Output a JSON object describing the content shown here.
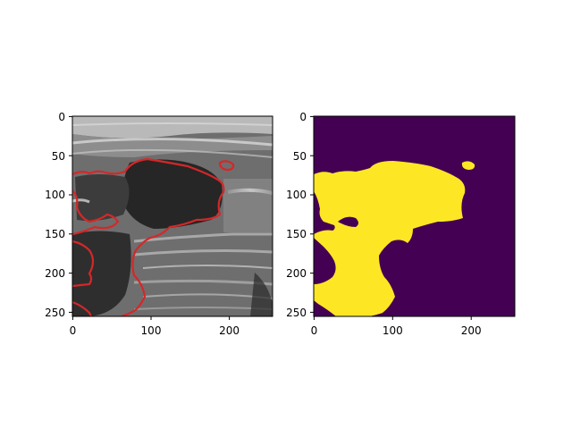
{
  "figure": {
    "panels": [
      {
        "name": "ultrasound-with-contour",
        "image": "grayscale-ultrasound",
        "contour_color": "#d62728",
        "x_ticks": [
          "0",
          "100",
          "200"
        ],
        "y_ticks": [
          "0",
          "50",
          "100",
          "150",
          "200",
          "250"
        ]
      },
      {
        "name": "segmentation-mask",
        "background_color": "#440154",
        "mask_color": "#fde725",
        "x_ticks": [
          "0",
          "100",
          "200"
        ],
        "y_ticks": [
          "0",
          "50",
          "100",
          "150",
          "200",
          "250"
        ]
      }
    ]
  }
}
